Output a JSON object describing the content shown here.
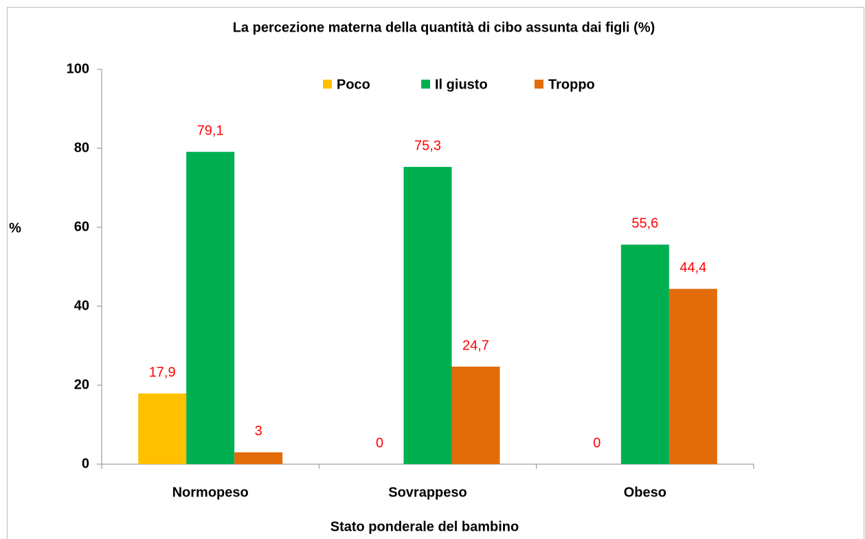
{
  "chart_data": {
    "type": "bar",
    "title": "La percezione materna della quantità di cibo assunta dai figli (%)",
    "x_label": "Stato ponderale  del bambino",
    "y_label": "%",
    "categories": [
      "Normopeso",
      "Sovrappeso",
      "Obeso"
    ],
    "series": [
      {
        "name": "Poco",
        "color": "#ffc000",
        "values": [
          17.9,
          0,
          0
        ],
        "value_labels": [
          "17,9",
          "0",
          "0"
        ]
      },
      {
        "name": "Il giusto",
        "color": "#00b050",
        "values": [
          79.1,
          75.3,
          55.6
        ],
        "value_labels": [
          "79,1",
          "75,3",
          "55,6"
        ]
      },
      {
        "name": "Troppo",
        "color": "#e36c0a",
        "values": [
          3,
          24.7,
          44.4
        ],
        "value_labels": [
          "3",
          "24,7",
          "44,4"
        ]
      }
    ],
    "value_label_color": "#ff0000",
    "ylim": [
      0,
      100
    ],
    "yticks": [
      0,
      20,
      40,
      60,
      80,
      100
    ],
    "grid": false,
    "legend": "top"
  }
}
